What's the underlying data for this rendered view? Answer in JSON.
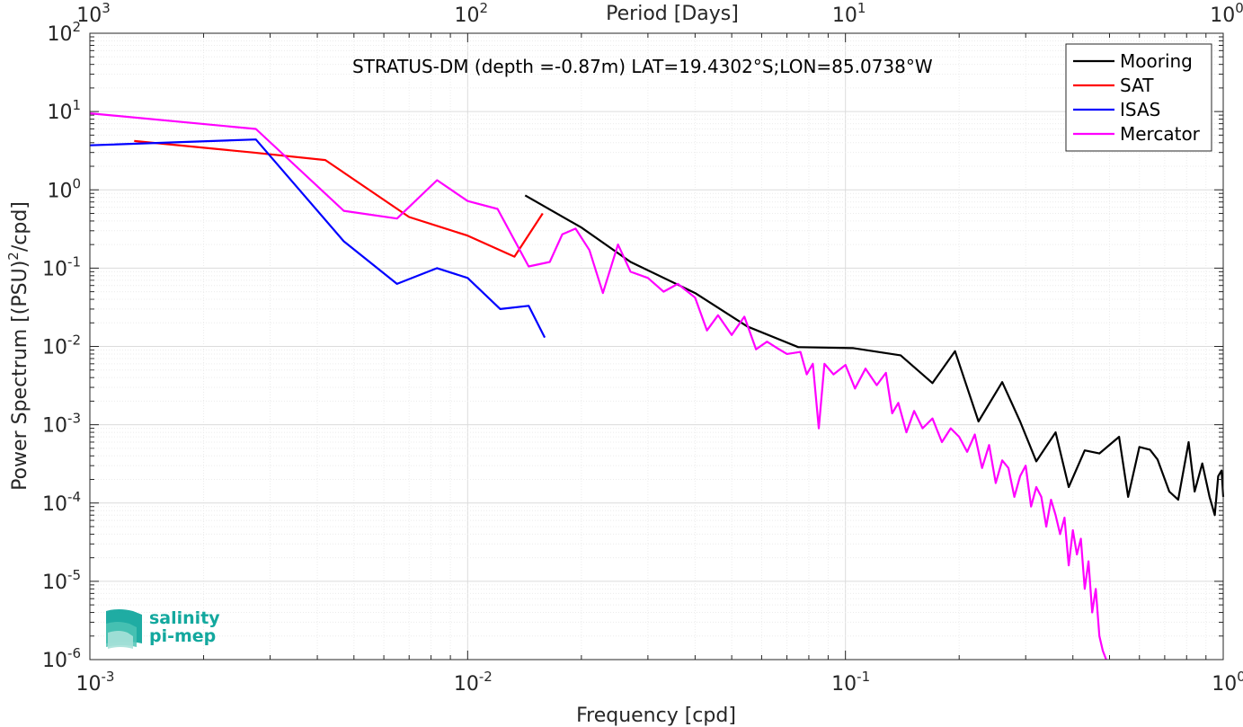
{
  "chart_data": {
    "type": "line",
    "x_scale": "log",
    "y_scale": "log",
    "xlim": [
      0.001,
      1
    ],
    "ylim": [
      1e-06,
      100
    ],
    "grid": true,
    "legend_placement": "top-right",
    "xlabel": "Frequency [cpd]",
    "ylabel_main": "Power Spectrum [(PSU)",
    "ylabel_sup": "2",
    "ylabel_tail": "/cpd]",
    "top_axis_label": "Period [Days]",
    "annotation": "STRATUS-DM (depth =-0.87m) LAT=19.4302°S;LON=85.0738°W",
    "x_ticks": [
      {
        "value": 0.001,
        "base": "10",
        "exp": "-3"
      },
      {
        "value": 0.01,
        "base": "10",
        "exp": "-2"
      },
      {
        "value": 0.1,
        "base": "10",
        "exp": "-1"
      },
      {
        "value": 1,
        "base": "10",
        "exp": "0"
      }
    ],
    "top_ticks": [
      {
        "freq": 0.001,
        "base": "10",
        "exp": "3"
      },
      {
        "freq": 0.01,
        "base": "10",
        "exp": "2"
      },
      {
        "freq": 0.1,
        "base": "10",
        "exp": "1"
      },
      {
        "freq": 1,
        "base": "10",
        "exp": "0"
      }
    ],
    "y_ticks": [
      {
        "value": 100,
        "base": "10",
        "exp": "2"
      },
      {
        "value": 10,
        "base": "10",
        "exp": "1"
      },
      {
        "value": 1,
        "base": "10",
        "exp": "0"
      },
      {
        "value": 0.1,
        "base": "10",
        "exp": "-1"
      },
      {
        "value": 0.01,
        "base": "10",
        "exp": "-2"
      },
      {
        "value": 0.001,
        "base": "10",
        "exp": "-3"
      },
      {
        "value": 0.0001,
        "base": "10",
        "exp": "-4"
      },
      {
        "value": 1e-05,
        "base": "10",
        "exp": "-5"
      },
      {
        "value": 1e-06,
        "base": "10",
        "exp": "-6"
      }
    ],
    "series": [
      {
        "name": "Mooring",
        "color": "#000000",
        "points": [
          [
            0.0142,
            0.85
          ],
          [
            0.02,
            0.33
          ],
          [
            0.027,
            0.12
          ],
          [
            0.04,
            0.048
          ],
          [
            0.055,
            0.018
          ],
          [
            0.075,
            0.0098
          ],
          [
            0.105,
            0.0095
          ],
          [
            0.14,
            0.0077
          ],
          [
            0.17,
            0.0034
          ],
          [
            0.195,
            0.0087
          ],
          [
            0.225,
            0.0011
          ],
          [
            0.26,
            0.0035
          ],
          [
            0.29,
            0.0011
          ],
          [
            0.32,
            0.00034
          ],
          [
            0.36,
            0.0008
          ],
          [
            0.39,
            0.00016
          ],
          [
            0.43,
            0.00047
          ],
          [
            0.47,
            0.00043
          ],
          [
            0.53,
            0.0007
          ],
          [
            0.56,
            0.00012
          ],
          [
            0.6,
            0.00052
          ],
          [
            0.64,
            0.00048
          ],
          [
            0.67,
            0.00036
          ],
          [
            0.72,
            0.00014
          ],
          [
            0.76,
            0.00011
          ],
          [
            0.81,
            0.0006
          ],
          [
            0.84,
            0.00014
          ],
          [
            0.88,
            0.00032
          ],
          [
            0.92,
            0.00012
          ],
          [
            0.95,
            7e-05
          ],
          [
            0.97,
            0.00022
          ],
          [
            0.99,
            0.00026
          ],
          [
            1.0,
            0.00012
          ]
        ]
      },
      {
        "name": "SAT",
        "color": "#ff0000",
        "points": [
          [
            0.00131,
            4.2
          ],
          [
            0.0027,
            3.0
          ],
          [
            0.0042,
            2.4
          ],
          [
            0.007,
            0.45
          ],
          [
            0.01,
            0.26
          ],
          [
            0.0133,
            0.14
          ],
          [
            0.0158,
            0.5
          ]
        ]
      },
      {
        "name": "ISAS",
        "color": "#0000ff",
        "points": [
          [
            0.001,
            3.7
          ],
          [
            0.00275,
            4.4
          ],
          [
            0.0047,
            0.22
          ],
          [
            0.0065,
            0.063
          ],
          [
            0.0083,
            0.1
          ],
          [
            0.01,
            0.075
          ],
          [
            0.0122,
            0.03
          ],
          [
            0.0145,
            0.033
          ],
          [
            0.016,
            0.013
          ]
        ]
      },
      {
        "name": "Mercator",
        "color": "#ff00ff",
        "points": [
          [
            0.001,
            9.5
          ],
          [
            0.00275,
            6.0
          ],
          [
            0.0047,
            0.54
          ],
          [
            0.0065,
            0.43
          ],
          [
            0.0083,
            1.33
          ],
          [
            0.01,
            0.72
          ],
          [
            0.012,
            0.57
          ],
          [
            0.0145,
            0.105
          ],
          [
            0.0165,
            0.12
          ],
          [
            0.0178,
            0.27
          ],
          [
            0.0193,
            0.32
          ],
          [
            0.021,
            0.17
          ],
          [
            0.0228,
            0.048
          ],
          [
            0.025,
            0.2
          ],
          [
            0.027,
            0.09
          ],
          [
            0.03,
            0.075
          ],
          [
            0.033,
            0.05
          ],
          [
            0.036,
            0.063
          ],
          [
            0.04,
            0.042
          ],
          [
            0.043,
            0.016
          ],
          [
            0.046,
            0.025
          ],
          [
            0.05,
            0.014
          ],
          [
            0.054,
            0.024
          ],
          [
            0.058,
            0.0092
          ],
          [
            0.062,
            0.0115
          ],
          [
            0.066,
            0.0095
          ],
          [
            0.07,
            0.008
          ],
          [
            0.076,
            0.0085
          ],
          [
            0.079,
            0.0044
          ],
          [
            0.082,
            0.006
          ],
          [
            0.085,
            0.0009
          ],
          [
            0.088,
            0.006
          ],
          [
            0.093,
            0.0044
          ],
          [
            0.1,
            0.0058
          ],
          [
            0.106,
            0.0029
          ],
          [
            0.113,
            0.0052
          ],
          [
            0.121,
            0.0032
          ],
          [
            0.128,
            0.0046
          ],
          [
            0.133,
            0.0014
          ],
          [
            0.138,
            0.0019
          ],
          [
            0.145,
            0.0008
          ],
          [
            0.152,
            0.0015
          ],
          [
            0.16,
            0.0009
          ],
          [
            0.17,
            0.0012
          ],
          [
            0.18,
            0.0006
          ],
          [
            0.19,
            0.0009
          ],
          [
            0.2,
            0.0007
          ],
          [
            0.21,
            0.00045
          ],
          [
            0.22,
            0.00075
          ],
          [
            0.23,
            0.00028
          ],
          [
            0.24,
            0.00055
          ],
          [
            0.25,
            0.00018
          ],
          [
            0.26,
            0.00035
          ],
          [
            0.27,
            0.00028
          ],
          [
            0.28,
            0.00012
          ],
          [
            0.29,
            0.00022
          ],
          [
            0.3,
            0.0003
          ],
          [
            0.31,
            9e-05
          ],
          [
            0.32,
            0.00016
          ],
          [
            0.33,
            0.00012
          ],
          [
            0.34,
            5e-05
          ],
          [
            0.35,
            0.00011
          ],
          [
            0.36,
            7e-05
          ],
          [
            0.37,
            4e-05
          ],
          [
            0.38,
            6.5e-05
          ],
          [
            0.39,
            1.6e-05
          ],
          [
            0.4,
            4.5e-05
          ],
          [
            0.41,
            2.2e-05
          ],
          [
            0.42,
            3.5e-05
          ],
          [
            0.43,
            8e-06
          ],
          [
            0.44,
            1.8e-05
          ],
          [
            0.45,
            4e-06
          ],
          [
            0.46,
            8e-06
          ],
          [
            0.47,
            2e-06
          ],
          [
            0.48,
            1.3e-06
          ],
          [
            0.49,
            1e-06
          ]
        ]
      }
    ]
  },
  "logo": {
    "line1": "salinity",
    "line2": "pi-mep"
  }
}
